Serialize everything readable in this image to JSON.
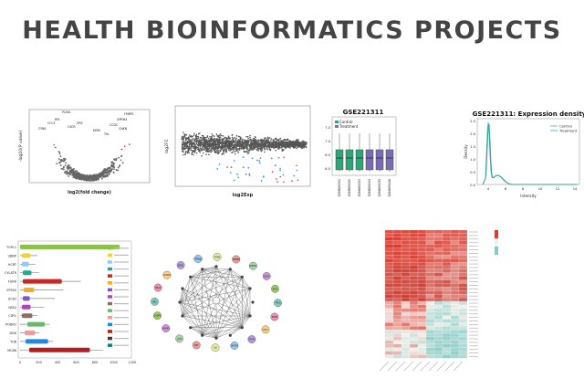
{
  "header": {
    "title": "HEALTH BIOINFORMATICS PROJECTS"
  },
  "volcano": {
    "xlabel": "log2(fold change)",
    "ylabel": "-log10(P value)",
    "gene_labels": [
      "PLEK1",
      "RPL",
      "CYBA",
      "CCL3",
      "CXCR",
      "SPIC",
      "GPRM4",
      "CNKN",
      "FMBP1",
      "TKL",
      "CCDC",
      "KERV"
    ]
  },
  "ma_plot": {
    "xlabel": "log2Exp",
    "ylabel": "log2FC"
  },
  "boxplot": {
    "title": "GSE221311",
    "legend": [
      "Control",
      "Treatment"
    ],
    "colors": {
      "control": "#2fa37a",
      "treatment": "#7b6bb2"
    },
    "y_ticks": [
      "7.5",
      "7.0",
      "6.5",
      "6.0"
    ]
  },
  "density": {
    "title": "GSE221311: Expression density",
    "legend": [
      "Control",
      "Treatment"
    ],
    "xlabel": "Intensity",
    "ylabel": "Density",
    "x_ticks": [
      "4",
      "6",
      "8",
      "10",
      "12",
      "14"
    ],
    "y_ticks": [
      "2.5",
      "2.0",
      "1.5",
      "1.0",
      "0.5",
      "0.0"
    ],
    "colors": {
      "control": "#5aa0d8",
      "treatment": "#2aa888"
    }
  },
  "domains": {
    "proteins": [
      "TOPL1",
      "UBNP",
      "HCRT",
      "CYLATR",
      "FGRK",
      "EP300",
      "UCK2",
      "NFA2",
      "CDYL",
      "PODN1",
      "DDX",
      "TUB",
      "MCB6"
    ],
    "x_ticks": [
      "0",
      "200",
      "400",
      "600",
      "800",
      "1000",
      "1200"
    ]
  },
  "network": {
    "nodes": [
      "AKT1",
      "TP53",
      "EGFR",
      "MYC",
      "STAT3",
      "VEGFA",
      "IL6",
      "TNF",
      "JUN",
      "MAPK3",
      "CASP3",
      "SRC",
      "HRAS",
      "CCND1",
      "ESR1",
      "CTNNB1",
      "PTEN",
      "ERBB2",
      "MDM2",
      "CDK4"
    ]
  }
}
